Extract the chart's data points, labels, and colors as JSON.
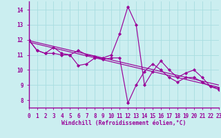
{
  "background_color": "#cbeef0",
  "grid_color": "#a8dde0",
  "line_color": "#990099",
  "xlabel": "Windchill (Refroidissement éolien,°C)",
  "xlim": [
    0,
    23
  ],
  "ylim": [
    7.5,
    14.55
  ],
  "yticks": [
    8,
    9,
    10,
    11,
    12,
    13,
    14
  ],
  "xticks": [
    0,
    1,
    2,
    3,
    4,
    5,
    6,
    7,
    8,
    9,
    10,
    11,
    12,
    13,
    14,
    15,
    16,
    17,
    18,
    19,
    20,
    21,
    22,
    23
  ],
  "series1_x": [
    0,
    1,
    2,
    3,
    4,
    5,
    6,
    7,
    8,
    9,
    10,
    11,
    12,
    13,
    14,
    15,
    16,
    17,
    18,
    19,
    20,
    21,
    22,
    23
  ],
  "series1_y": [
    12.0,
    11.3,
    11.1,
    11.5,
    11.1,
    11.0,
    10.3,
    10.4,
    10.8,
    10.8,
    11.0,
    12.4,
    14.2,
    13.0,
    9.0,
    9.9,
    10.6,
    10.0,
    9.5,
    9.8,
    10.0,
    9.5,
    8.9,
    8.8
  ],
  "series2_x": [
    0,
    1,
    2,
    3,
    4,
    5,
    6,
    7,
    8,
    9,
    10,
    11,
    12,
    13,
    14,
    15,
    16,
    17,
    18,
    19,
    20,
    21,
    22,
    23
  ],
  "series2_y": [
    12.0,
    11.3,
    11.1,
    11.1,
    11.0,
    11.0,
    11.3,
    11.0,
    10.9,
    10.7,
    10.8,
    10.8,
    7.8,
    9.0,
    9.9,
    10.4,
    10.0,
    9.5,
    9.2,
    9.5,
    9.5,
    9.2,
    8.9,
    8.7
  ],
  "trend1_x": [
    0,
    23
  ],
  "trend1_y": [
    11.95,
    9.0
  ],
  "trend2_x": [
    0,
    23
  ],
  "trend2_y": [
    11.85,
    8.85
  ]
}
